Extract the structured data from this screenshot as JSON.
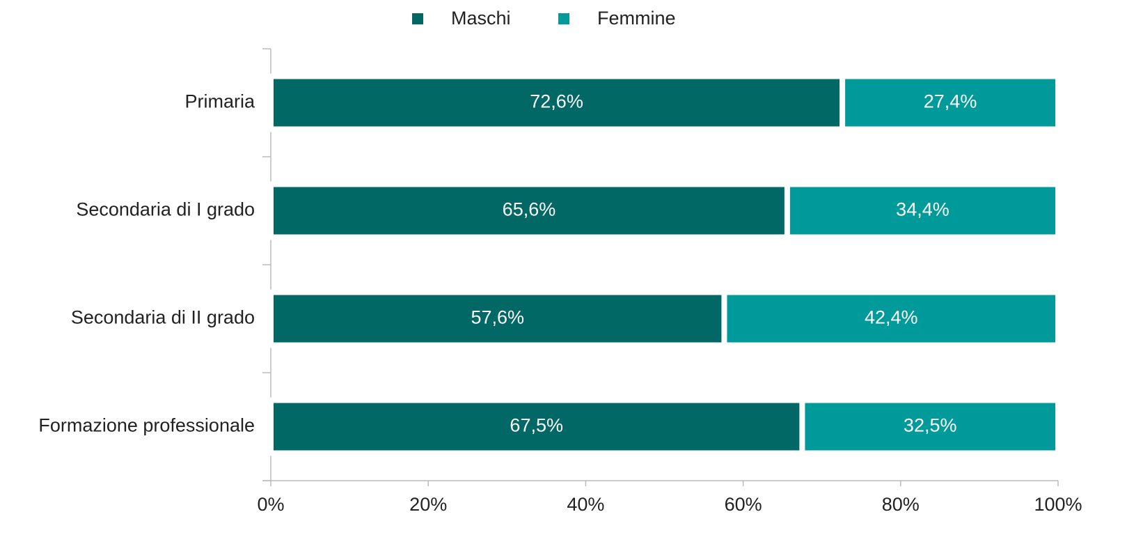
{
  "chart_data": {
    "type": "stacked_barh",
    "categories": [
      "Primaria",
      "Secondaria di I grado",
      "Secondaria di II grado",
      "Formazione professionale"
    ],
    "series": [
      {
        "name": "Maschi",
        "color": "#016865",
        "values": [
          72.6,
          65.6,
          57.6,
          67.5
        ],
        "value_labels": [
          "72,6%",
          "65,6%",
          "57,6%",
          "67,5%"
        ]
      },
      {
        "name": "Femmine",
        "color": "#009a9a",
        "values": [
          27.4,
          34.4,
          42.4,
          32.5
        ],
        "value_labels": [
          "27,4%",
          "34,4%",
          "42,4%",
          "32,5%"
        ]
      }
    ],
    "xlim": [
      0,
      100
    ],
    "xticks": [
      {
        "value": 0,
        "label": "0%"
      },
      {
        "value": 20,
        "label": "20%"
      },
      {
        "value": 40,
        "label": "40%"
      },
      {
        "value": 60,
        "label": "60%"
      },
      {
        "value": 80,
        "label": "80%"
      },
      {
        "value": 100,
        "label": "100%"
      }
    ],
    "legend": "top"
  }
}
